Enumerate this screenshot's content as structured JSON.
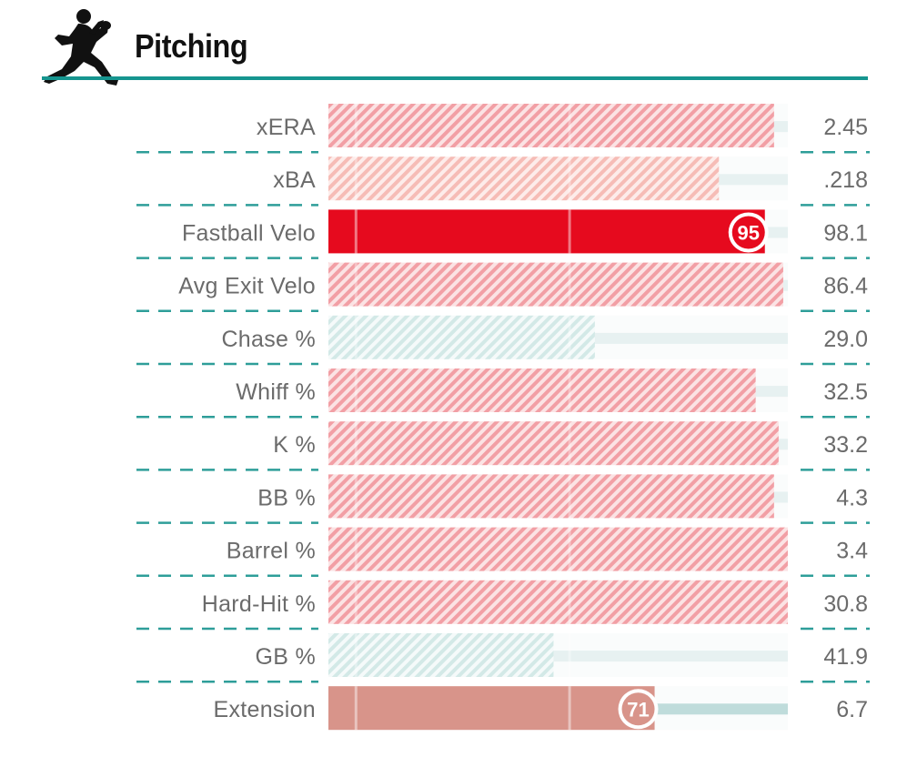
{
  "header": {
    "title": "Pitching",
    "icon": "pitcher-silhouette-icon",
    "rule_color": "#16958f"
  },
  "colors": {
    "hot": "#e60a1e",
    "cold": "#a9d3d0",
    "dash": "#2e9e99",
    "label": "#6b6b6b",
    "track": "#e7f1f1"
  },
  "chart_data": {
    "type": "bar",
    "title": "Pitching",
    "orientation": "horizontal",
    "value_axis": "percentile",
    "xlim": [
      0,
      100
    ],
    "categories": [
      "xERA",
      "xBA",
      "Fastball Velo",
      "Avg Exit Velo",
      "Chase %",
      "Whiff %",
      "K %",
      "BB %",
      "Barrel %",
      "Hard-Hit %",
      "GB %",
      "Extension"
    ],
    "percentiles": [
      97,
      85,
      95,
      99,
      58,
      93,
      98,
      97,
      100,
      100,
      49,
      71
    ],
    "values": [
      "2.45",
      ".218",
      "98.1",
      "86.4",
      "29.0",
      "32.5",
      "33.2",
      "4.3",
      "3.4",
      "30.8",
      "41.9",
      "6.7"
    ],
    "style": [
      "hatched",
      "hatched",
      "solid",
      "hatched",
      "hatched",
      "hatched",
      "hatched",
      "hatched",
      "hatched",
      "hatched",
      "hatched",
      "solid"
    ],
    "labeled_percentiles": [
      null,
      null,
      "95",
      null,
      null,
      null,
      null,
      null,
      null,
      null,
      null,
      "71"
    ],
    "colors": [
      "#f4a3a8",
      "#f5b8b2",
      "#e60a1e",
      "#f4a3a8",
      "#d2e8e6",
      "#f4a3a8",
      "#f4a3a8",
      "#f4a3a8",
      "#f49da2",
      "#f49da2",
      "#d2e8e6",
      "#d8948a"
    ],
    "legend": "none",
    "grid": false
  }
}
